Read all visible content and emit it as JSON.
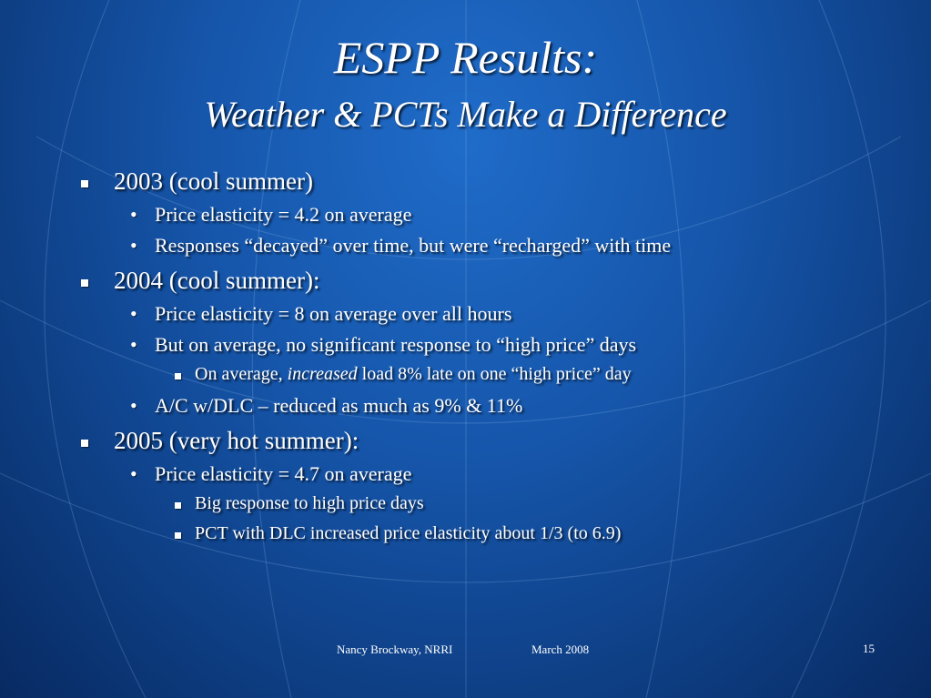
{
  "slide": {
    "title": "ESPP Results:",
    "subtitle": "Weather & PCTs Make a Difference",
    "sections": [
      {
        "heading": "2003 (cool summer)",
        "items": [
          {
            "text": "Price elasticity =  4.2 on average"
          },
          {
            "text": "Responses “decayed” over time, but were “recharged” with time"
          }
        ]
      },
      {
        "heading": "2004 (cool summer):",
        "items": [
          {
            "text": "Price elasticity =  8 on average over all hours"
          },
          {
            "text": "But on average, no significant response to “high price” days",
            "subitems": [
              {
                "segments": [
                  "On average, ",
                  "increased",
                  " load 8% late on one “high price” day"
                ]
              }
            ]
          },
          {
            "text": "A/C w/DLC  – reduced as much as 9% & 11%"
          }
        ]
      },
      {
        "heading": "2005 (very hot summer):",
        "items": [
          {
            "text": "Price elasticity =  4.7 on average",
            "subitems": [
              {
                "text": "Big response to high price days"
              },
              {
                "text": "PCT with DLC increased price elasticity about 1/3 (to 6.9)"
              }
            ]
          }
        ]
      }
    ],
    "footer": {
      "author": "Nancy Brockway, NRRI",
      "date": "March 2008",
      "page": "15"
    }
  }
}
